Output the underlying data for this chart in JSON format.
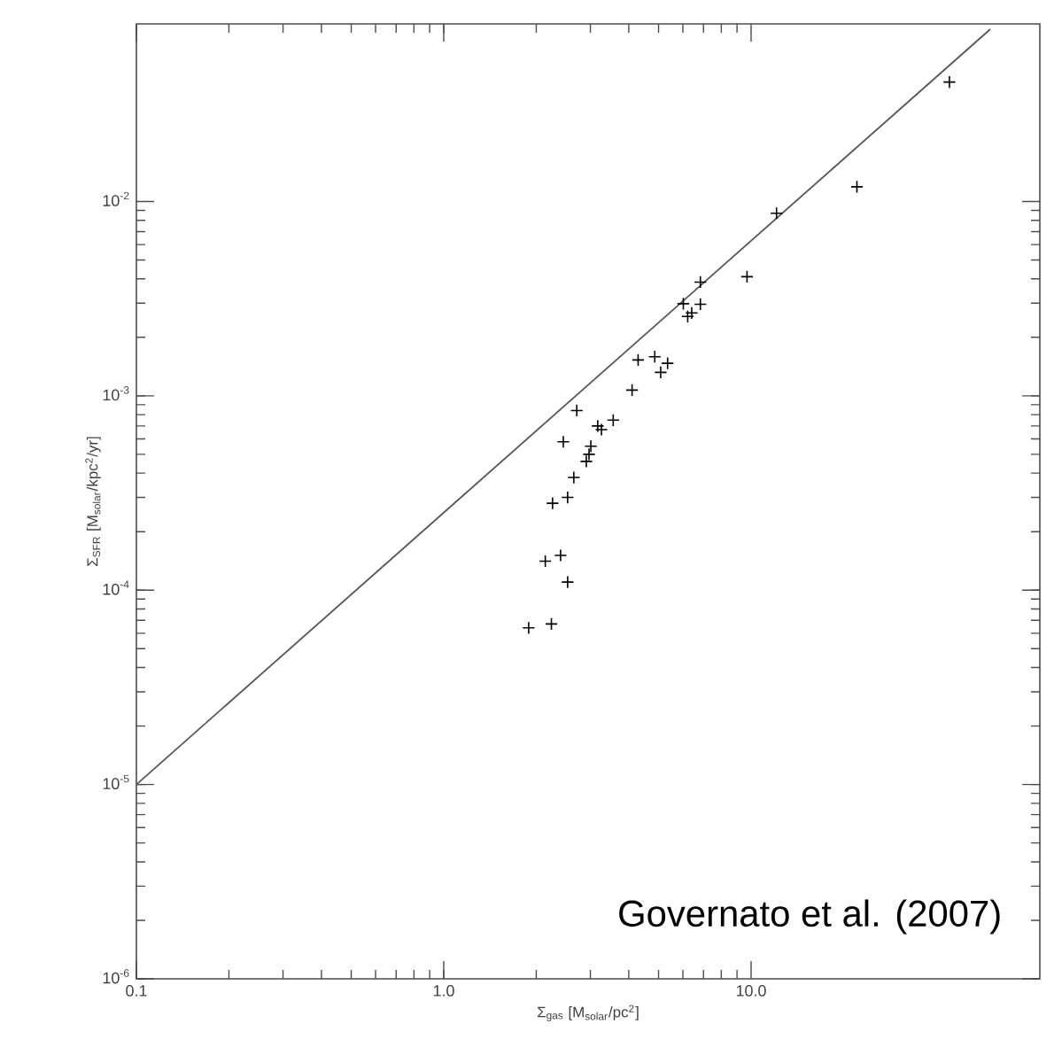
{
  "chart_data": {
    "type": "scatter",
    "xlabel": "Σ$_{gas}$ [M$_{solar}$/pc$^{2}$]",
    "ylabel": "Σ$_{SFR}$ [M$_{solar}$/kpc$^{2}$/yr]",
    "log": "xy",
    "xlim": [
      0.1,
      87
    ],
    "ylim": [
      1e-06,
      0.082
    ],
    "xticks": [
      0.1,
      {
        "value": 1,
        "label": "1.0"
      },
      {
        "value": 10,
        "label": "10.0"
      }
    ],
    "yticks": [
      {
        "value": 1e-06,
        "label": "10$^{-6}$"
      },
      {
        "value": 1e-05,
        "label": "10$^{-5}$"
      },
      {
        "value": 0.0001,
        "label": "10$^{-4}$"
      },
      {
        "value": 0.001,
        "label": "10$^{-3}$"
      },
      {
        "value": 0.01,
        "label": "10$^{-2}$"
      }
    ],
    "grid": false,
    "marker": "cross",
    "annotations": [
      "Governato et al. (2007)"
    ],
    "series": [
      {
        "type": "scatter",
        "color": "#000000",
        "x": [
          44.2,
          22.1,
          12.1,
          9.7,
          6.84,
          6.84,
          6.02,
          6.41,
          6.22,
          4.29,
          4.86,
          5.35,
          5.08,
          4.1,
          2.71,
          3.56,
          3.17,
          3.26,
          2.45,
          3.01,
          2.97,
          2.91,
          2.65,
          2.53,
          2.26,
          2.14,
          2.4,
          2.53,
          1.89,
          2.24
        ],
        "values": [
          0.0412,
          0.0119,
          0.0087,
          0.0041,
          0.00385,
          0.00296,
          0.00298,
          0.00267,
          0.00256,
          0.00153,
          0.00159,
          0.00147,
          0.00132,
          0.00107,
          0.00084,
          0.00075,
          0.0007,
          0.00067,
          0.00058,
          0.00055,
          0.0005,
          0.00046,
          0.00038,
          0.0003,
          0.00028,
          0.000141,
          0.000151,
          0.00011,
          6.4e-05,
          6.7e-05
        ]
      },
      {
        "type": "line",
        "color": "#555555",
        "marker": "none",
        "line_style": "solid",
        "x": [
          0.1,
          60
        ],
        "values": [
          1e-05,
          0.077
        ]
      }
    ]
  }
}
